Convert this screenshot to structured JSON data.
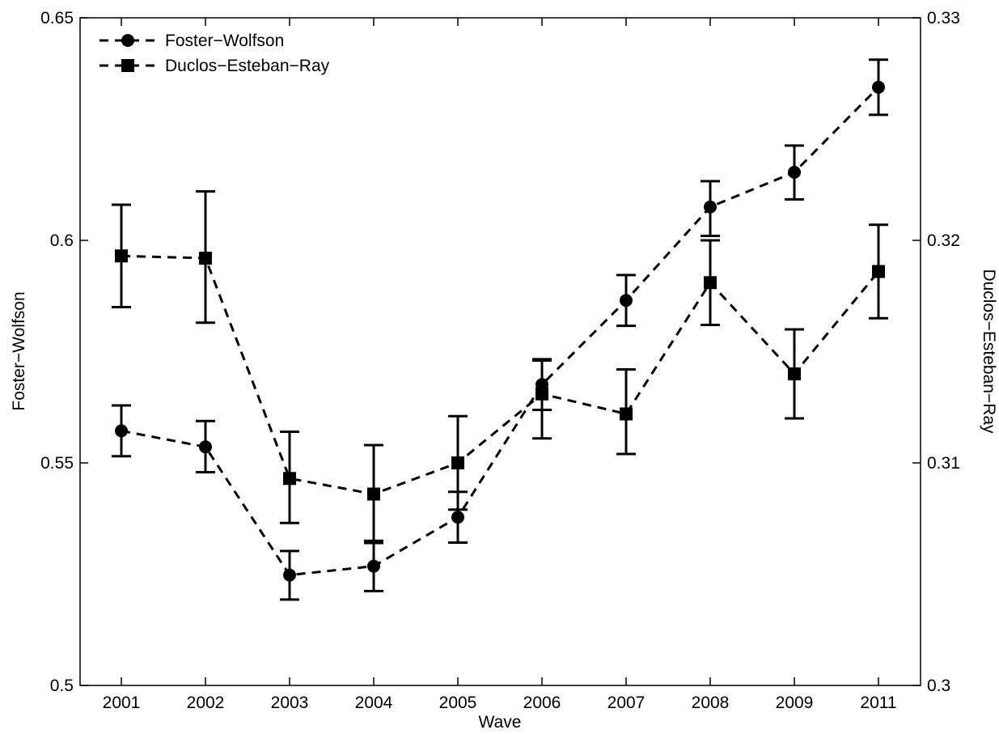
{
  "chart_data": {
    "type": "line",
    "title": "",
    "xlabel": "Wave",
    "ylabel_left": "Foster−Wolfson",
    "ylabel_right": "Duclos−Esteban−Ray",
    "categories": [
      "2001",
      "2002",
      "2003",
      "2004",
      "2005",
      "2006",
      "2007",
      "2008",
      "2009",
      "2011"
    ],
    "ylim_left": [
      0.5,
      0.65
    ],
    "ylim_right": [
      0.3,
      0.33
    ],
    "yticks_left": [
      "0.5",
      "0.55",
      "0.6",
      "0.65"
    ],
    "yticks_right": [
      "0.3",
      "0.31",
      "0.32",
      "0.33"
    ],
    "ytick_values_left": [
      0.5,
      0.55,
      0.6,
      0.65
    ],
    "ytick_values_right": [
      0.3,
      0.31,
      0.32,
      0.33
    ],
    "grid": false,
    "legend_position": "top-left",
    "series": [
      {
        "name": "Foster−Wolfson",
        "axis": "left",
        "marker": "circle",
        "line_style": "dashed",
        "color": "#000000",
        "values": [
          0.5572,
          0.5536,
          0.5248,
          0.5268,
          0.5378,
          0.5676,
          0.5865,
          0.6075,
          0.6153,
          0.6344
        ],
        "error_low": [
          0.5515,
          0.5479,
          0.5193,
          0.5212,
          0.5321,
          0.5619,
          0.5808,
          0.601,
          0.6092,
          0.6282
        ],
        "error_high": [
          0.5629,
          0.5594,
          0.5302,
          0.5325,
          0.5435,
          0.5733,
          0.5922,
          0.6133,
          0.6213,
          0.6406
        ]
      },
      {
        "name": "Duclos−Esteban−Ray",
        "axis": "right",
        "marker": "square",
        "line_style": "dashed",
        "color": "#000000",
        "values": [
          0.3193,
          0.3192,
          0.3093,
          0.3086,
          0.31,
          0.3131,
          0.3122,
          0.3181,
          0.314,
          0.3186
        ],
        "error_low": [
          0.317,
          0.3163,
          0.3073,
          0.3064,
          0.3079,
          0.3111,
          0.3104,
          0.3162,
          0.312,
          0.3165
        ],
        "error_high": [
          0.3216,
          0.3222,
          0.3114,
          0.3108,
          0.3121,
          0.3146,
          0.3142,
          0.32,
          0.316,
          0.3207
        ]
      }
    ]
  }
}
